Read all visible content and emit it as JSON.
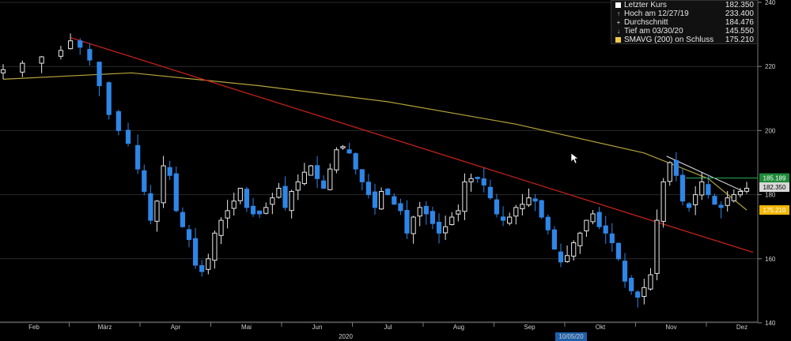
{
  "chart_data": {
    "type": "candlestick",
    "ylim": [
      140,
      240
    ],
    "y_ticks": [
      140,
      160,
      180,
      200,
      220,
      240
    ],
    "months": [
      "Feb",
      "März",
      "Apr",
      "Mai",
      "Jun",
      "Jul",
      "Aug",
      "Sep",
      "Okt",
      "Nov",
      "Dez"
    ],
    "year_label": "2020",
    "date_highlight": "10/05/20",
    "legend": [
      {
        "marker": "■",
        "label": "Letzter Kurs",
        "value": "182.350",
        "color": "#ffffff"
      },
      {
        "marker": "↑",
        "label": "Hoch am 12/27/19",
        "value": "233.400",
        "color": "#ffffff"
      },
      {
        "marker": "+",
        "label": "Durchschnitt",
        "value": "184.476",
        "color": "#ffffff"
      },
      {
        "marker": "↓",
        "label": "Tief am 03/30/20",
        "value": "145.550",
        "color": "#ffffff"
      },
      {
        "marker": "■",
        "label": "SMAVG (200)  on Schluss",
        "value": "175.210",
        "color": "#f2c94c"
      }
    ],
    "value_badges": [
      {
        "value": "185.189",
        "color": "#1f8a3a"
      },
      {
        "value": "182.350",
        "color": "#d8d8d8"
      },
      {
        "value": "175.210",
        "color": "#f2b705"
      }
    ],
    "price_path": [
      [
        0,
        219
      ],
      [
        6,
        221
      ],
      [
        12,
        223
      ],
      [
        18,
        225
      ],
      [
        21,
        228
      ],
      [
        24,
        226
      ],
      [
        27,
        222
      ],
      [
        30,
        214
      ],
      [
        33,
        205
      ],
      [
        36,
        200
      ],
      [
        39,
        196
      ],
      [
        42,
        188
      ],
      [
        44,
        181
      ],
      [
        46,
        172
      ],
      [
        48,
        178
      ],
      [
        50,
        189
      ],
      [
        52,
        186
      ],
      [
        54,
        175
      ],
      [
        56,
        170
      ],
      [
        58,
        166
      ],
      [
        60,
        158
      ],
      [
        62,
        156
      ],
      [
        64,
        160
      ],
      [
        66,
        168
      ],
      [
        68,
        172
      ],
      [
        70,
        175
      ],
      [
        72,
        178
      ],
      [
        74,
        182
      ],
      [
        76,
        176
      ],
      [
        78,
        174
      ],
      [
        80,
        174
      ],
      [
        82,
        176
      ],
      [
        84,
        179
      ],
      [
        86,
        182
      ],
      [
        88,
        176
      ],
      [
        90,
        181
      ],
      [
        92,
        184
      ],
      [
        94,
        187
      ],
      [
        96,
        189
      ],
      [
        98,
        185
      ],
      [
        100,
        182
      ],
      [
        102,
        188
      ],
      [
        104,
        194
      ],
      [
        106,
        195
      ],
      [
        108,
        193
      ],
      [
        110,
        188
      ],
      [
        112,
        184
      ],
      [
        114,
        180
      ],
      [
        116,
        176
      ],
      [
        118,
        181
      ],
      [
        120,
        180
      ],
      [
        122,
        177
      ],
      [
        124,
        175
      ],
      [
        126,
        168
      ],
      [
        128,
        173
      ],
      [
        130,
        176
      ],
      [
        132,
        174
      ],
      [
        134,
        171
      ],
      [
        136,
        168
      ],
      [
        138,
        170
      ],
      [
        140,
        173
      ],
      [
        142,
        175
      ],
      [
        144,
        184
      ],
      [
        146,
        185
      ],
      [
        148,
        185
      ],
      [
        150,
        183
      ],
      [
        152,
        179
      ],
      [
        154,
        174
      ],
      [
        156,
        172
      ],
      [
        158,
        173
      ],
      [
        160,
        176
      ],
      [
        162,
        177
      ],
      [
        164,
        179
      ],
      [
        166,
        178
      ],
      [
        168,
        173
      ],
      [
        170,
        169
      ],
      [
        172,
        163
      ],
      [
        174,
        159
      ],
      [
        176,
        161
      ],
      [
        178,
        165
      ],
      [
        180,
        168
      ],
      [
        182,
        172
      ],
      [
        184,
        174
      ],
      [
        186,
        170
      ],
      [
        188,
        168
      ],
      [
        190,
        165
      ],
      [
        192,
        160
      ],
      [
        194,
        153
      ],
      [
        196,
        150
      ],
      [
        198,
        148
      ],
      [
        200,
        151
      ],
      [
        202,
        155
      ],
      [
        204,
        172
      ],
      [
        206,
        184
      ],
      [
        208,
        190
      ],
      [
        210,
        186
      ],
      [
        212,
        178
      ],
      [
        214,
        176
      ],
      [
        216,
        180
      ],
      [
        218,
        184
      ],
      [
        220,
        180
      ],
      [
        222,
        177
      ],
      [
        224,
        176
      ],
      [
        226,
        179
      ],
      [
        228,
        180
      ],
      [
        230,
        181
      ],
      [
        232,
        182
      ]
    ]
  }
}
